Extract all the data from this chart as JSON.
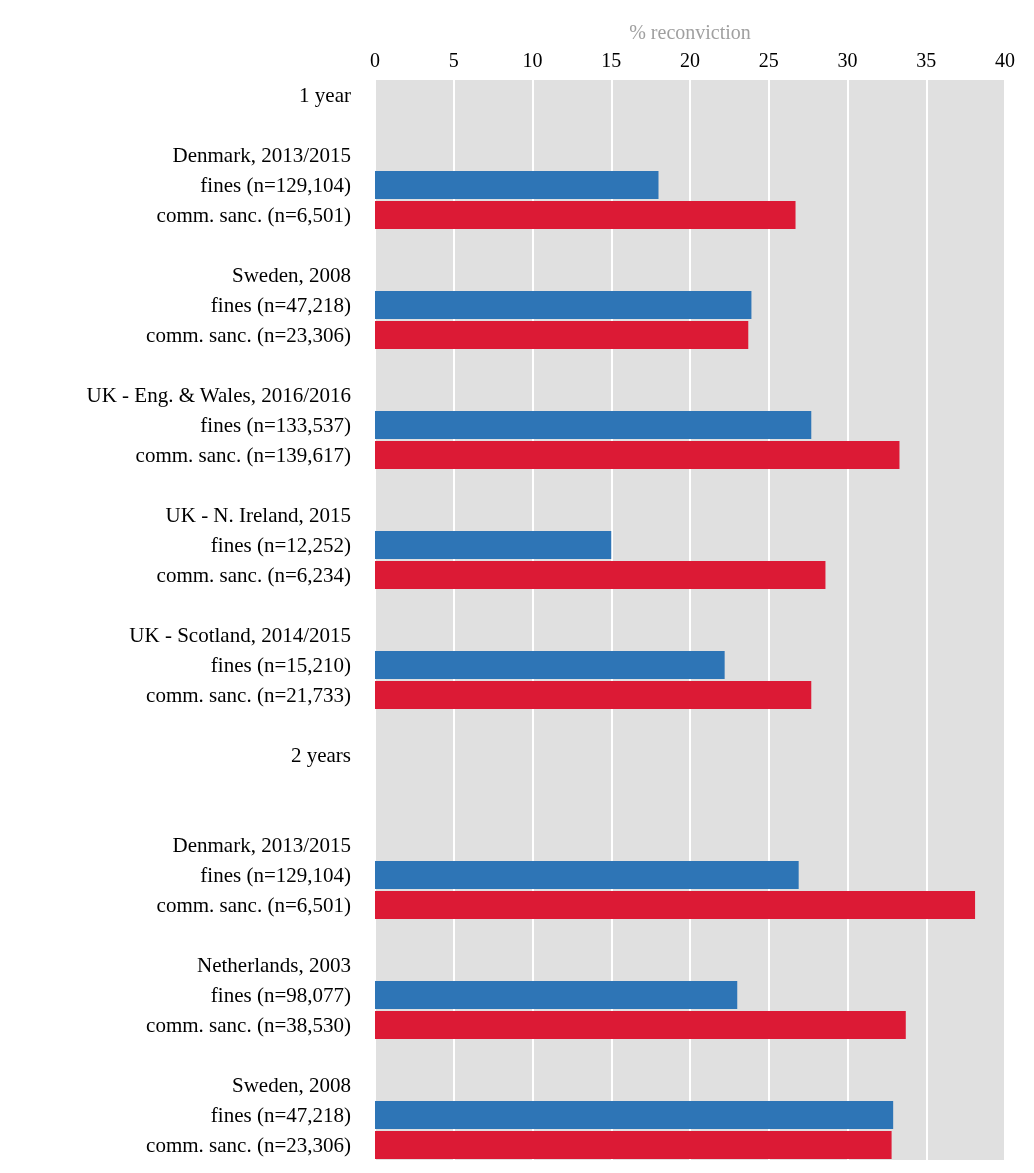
{
  "chart_data": {
    "type": "bar",
    "orientation": "horizontal",
    "xlabel": "% reconviction",
    "categories": [
      "1 year",
      null,
      "Denmark, 2013/2015",
      "fines (n=129,104)",
      "comm. sanc. (n=6,501)",
      null,
      "Sweden, 2008",
      "fines (n=47,218)",
      "comm. sanc. (n=23,306)",
      null,
      "UK - Eng. & Wales, 2016/2016",
      "fines (n=133,537)",
      "comm. sanc. (n=139,617)",
      null,
      "UK - N. Ireland, 2015",
      "fines (n=12,252)",
      "comm. sanc. (n=6,234)",
      null,
      "UK - Scotland, 2014/2015",
      "fines (n=15,210)",
      "comm. sanc. (n=21,733)",
      null,
      "2 years",
      null,
      null,
      "Denmark, 2013/2015",
      "fines (n=129,104)",
      "comm. sanc. (n=6,501)",
      null,
      "Netherlands, 2003",
      "fines (n=98,077)",
      "comm. sanc. (n=38,530)",
      null,
      "Sweden, 2008",
      "fines (n=47,218)",
      "comm. sanc. (n=23,306)"
    ],
    "values": [
      null,
      null,
      null,
      18.0,
      26.7,
      null,
      null,
      23.9,
      23.7,
      null,
      null,
      27.7,
      33.3,
      null,
      null,
      15.0,
      28.6,
      null,
      null,
      22.2,
      27.7,
      null,
      null,
      null,
      null,
      null,
      26.9,
      38.1,
      null,
      null,
      23.0,
      33.7,
      null,
      null,
      32.9,
      32.8
    ],
    "colors": [
      null,
      null,
      null,
      "#2e75b6",
      "#dc1a35",
      null,
      null,
      "#2e75b6",
      "#dc1a35",
      null,
      null,
      "#2e75b6",
      "#dc1a35",
      null,
      null,
      "#2e75b6",
      "#dc1a35",
      null,
      null,
      "#2e75b6",
      "#dc1a35",
      null,
      null,
      null,
      null,
      null,
      "#2e75b6",
      "#dc1a35",
      null,
      null,
      "#2e75b6",
      "#dc1a35",
      null,
      null,
      "#2e75b6",
      "#dc1a35"
    ],
    "xlim": [
      0,
      40
    ],
    "xticks": [
      0,
      5,
      10,
      15,
      20,
      25,
      30,
      35,
      40
    ],
    "grid": "x"
  }
}
